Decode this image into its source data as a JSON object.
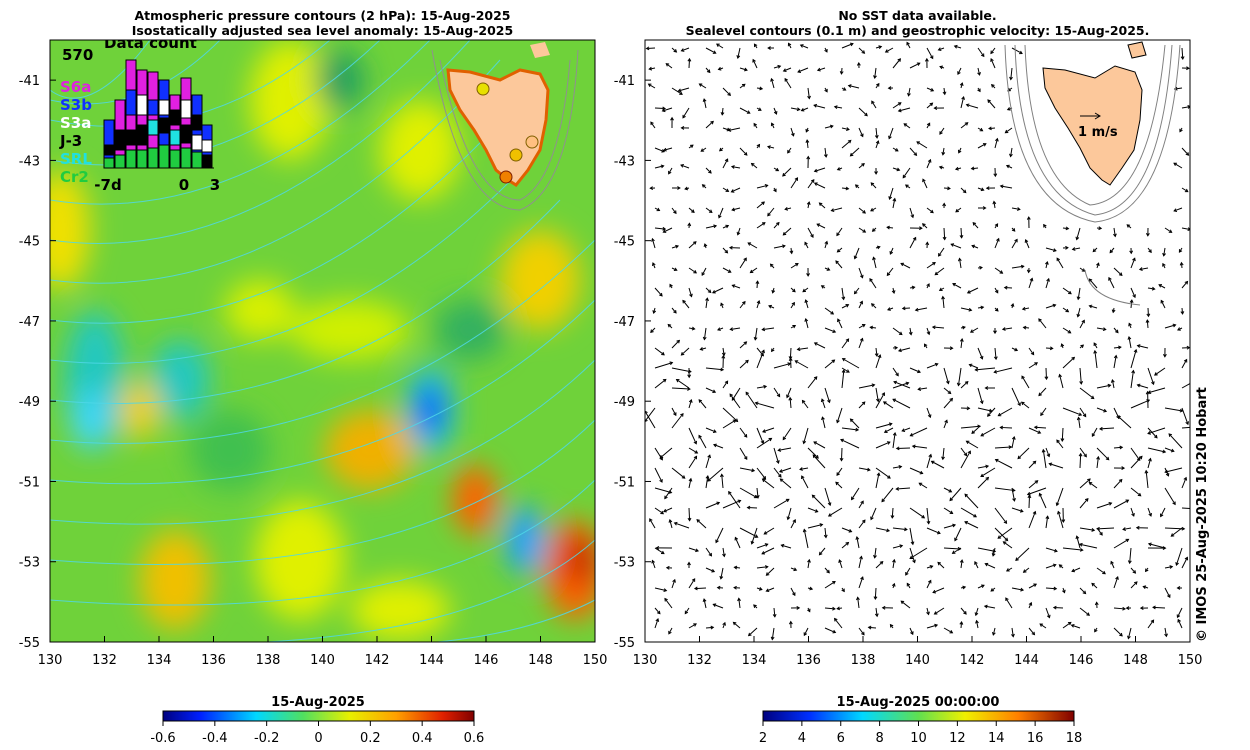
{
  "left_panel": {
    "title_line1": "Atmospheric pressure contours (2 hPa): 15-Aug-2025",
    "title_line2": "Isostatically adjusted sea level anomaly: 15-Aug-2025",
    "data_count": {
      "title": "Data count",
      "max_label": "570",
      "satellites": [
        {
          "name": "S6a",
          "color": "#e020e0"
        },
        {
          "name": "S3b",
          "color": "#1030ff"
        },
        {
          "name": "S3a",
          "color": "#ffffff"
        },
        {
          "name": "J-3",
          "color": "#000000"
        },
        {
          "name": "SRL",
          "color": "#20e0e0"
        },
        {
          "name": "Cr2",
          "color": "#20cc40"
        }
      ],
      "xticks": [
        "-7d",
        "0",
        "3"
      ]
    },
    "colorbar": {
      "label": "15-Aug-2025",
      "ticks": [
        "-0.6",
        "-0.4",
        "-0.2",
        "0",
        "0.2",
        "0.4",
        "0.6"
      ]
    }
  },
  "right_panel": {
    "title_line1": "No SST data available.",
    "title_line2": "Sealevel contours (0.1 m) and geostrophic velocity: 15-Aug-2025.",
    "scale_label": "1 m/s",
    "colorbar": {
      "label": "15-Aug-2025 00:00:00",
      "ticks": [
        "2",
        "4",
        "6",
        "8",
        "10",
        "12",
        "14",
        "16",
        "18"
      ]
    }
  },
  "map_axes": {
    "lon_ticks": [
      "130",
      "132",
      "134",
      "136",
      "138",
      "140",
      "142",
      "144",
      "146",
      "148",
      "150"
    ],
    "lat_ticks": [
      "-41",
      "-43",
      "-45",
      "-47",
      "-49",
      "-51",
      "-53",
      "-55"
    ],
    "lon_range": [
      130,
      150
    ],
    "lat_range": [
      -55,
      -40
    ]
  },
  "credit": "© IMOS 25-Aug-2025 10:20 Hobart",
  "colors": {
    "land": "#fcc89b",
    "anomaly_background": "#6fd23a",
    "contour": "#4fd8e8"
  }
}
